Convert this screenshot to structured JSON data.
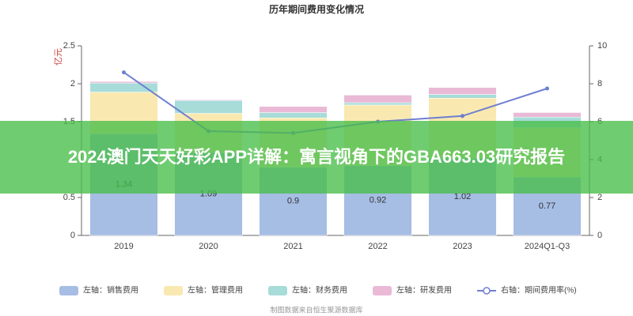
{
  "chart_data": {
    "type": "bar",
    "title": "历年期间费用变化情况",
    "y_label": "亿元",
    "categories": [
      "2019",
      "2020",
      "2021",
      "2022",
      "2023",
      "2024Q1-Q3"
    ],
    "series": [
      {
        "name": "左轴：销售费用",
        "color": "#a6bde4",
        "values": [
          1.34,
          1.09,
          0.9,
          0.92,
          1.02,
          0.77
        ]
      },
      {
        "name": "左轴：管理费用",
        "color": "#f9e9b0",
        "values": [
          0.55,
          0.52,
          0.65,
          0.8,
          0.79,
          0.65
        ]
      },
      {
        "name": "左轴：财务费用",
        "color": "#a7dcd9",
        "values": [
          0.12,
          0.17,
          0.07,
          0.03,
          0.05,
          0.14
        ]
      },
      {
        "name": "左轴：研发费用",
        "color": "#e9b9d6",
        "values": [
          0.02,
          0.01,
          0.08,
          0.1,
          0.09,
          0.06
        ]
      },
      {
        "name": "右轴：期间费用率(%)",
        "color": "#6f7fd0",
        "type": "line",
        "axis": "y2",
        "values": [
          8.6,
          5.5,
          5.4,
          6.0,
          6.3,
          7.75
        ]
      }
    ],
    "ylim": [
      0,
      2.5
    ],
    "yticks": [
      0,
      0.5,
      1,
      1.5,
      2,
      2.5
    ],
    "y2lim": [
      0,
      10
    ],
    "y2ticks": [
      0,
      2,
      4,
      6,
      8,
      10
    ],
    "source": "制图数据来自恒生聚源数据库"
  },
  "banner": {
    "text": "2024澳门天天好彩APP详解：寓言视角下的GBA663.03研究报告"
  }
}
